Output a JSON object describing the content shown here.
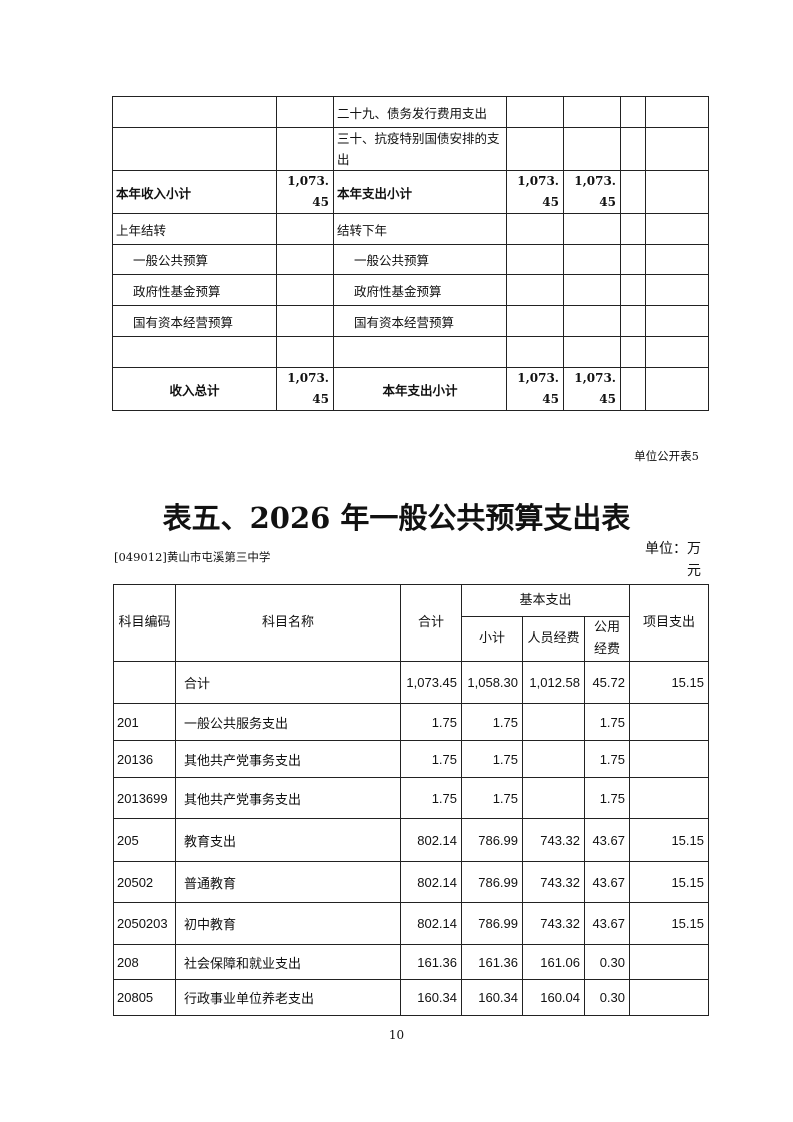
{
  "top_table": {
    "rows": [
      {
        "left_label": "",
        "left_value": "",
        "right_label": "二十九、债务发行费用支出",
        "v1": "",
        "v2": ""
      },
      {
        "left_label": "",
        "left_value": "",
        "right_label": "三十、抗疫特别国债安排的支出",
        "v1": "",
        "v2": ""
      },
      {
        "left_label": "本年收入小计",
        "left_value": "1,073.45",
        "right_label": "本年支出小计",
        "v1": "1,073.45",
        "v2": "1,073.45"
      },
      {
        "left_label": "上年结转",
        "left_value": "",
        "right_label": "结转下年",
        "v1": "",
        "v2": ""
      },
      {
        "left_label": "一般公共预算",
        "left_value": "",
        "right_label": "一般公共预算",
        "v1": "",
        "v2": ""
      },
      {
        "left_label": "政府性基金预算",
        "left_value": "",
        "right_label": "政府性基金预算",
        "v1": "",
        "v2": ""
      },
      {
        "left_label": "国有资本经营预算",
        "left_value": "",
        "right_label": "国有资本经营预算",
        "v1": "",
        "v2": ""
      },
      {
        "left_label": "",
        "left_value": "",
        "right_label": "",
        "v1": "",
        "v2": ""
      },
      {
        "left_label": "收入总计",
        "left_value": "1,073.45",
        "right_label": "本年支出小计",
        "v1": "1,073.45",
        "v2": "1,073.45"
      }
    ]
  },
  "table5": {
    "label": "单位公开表5",
    "title": "表五、2026 年一般公共预算支出表",
    "org": "[049012]黄山市屯溪第三中学",
    "unit": "单位：万元",
    "headers": {
      "code": "科目编码",
      "name": "科目名称",
      "total": "合计",
      "basic": "基本支出",
      "subtotal": "小计",
      "personnel": "人员经费",
      "public": "公用经费",
      "project": "项目支出"
    },
    "rows": [
      {
        "code": "",
        "name": "合计",
        "total": "1,073.45",
        "subtotal": "1,058.30",
        "personnel": "1,012.58",
        "public": "45.72",
        "project": "15.15"
      },
      {
        "code": "201",
        "name": "一般公共服务支出",
        "total": "1.75",
        "subtotal": "1.75",
        "personnel": "",
        "public": "1.75",
        "project": ""
      },
      {
        "code": "20136",
        "name": "其他共产党事务支出",
        "total": "1.75",
        "subtotal": "1.75",
        "personnel": "",
        "public": "1.75",
        "project": ""
      },
      {
        "code": "2013699",
        "name": "其他共产党事务支出",
        "total": "1.75",
        "subtotal": "1.75",
        "personnel": "",
        "public": "1.75",
        "project": ""
      },
      {
        "code": "205",
        "name": "教育支出",
        "total": "802.14",
        "subtotal": "786.99",
        "personnel": "743.32",
        "public": "43.67",
        "project": "15.15"
      },
      {
        "code": "20502",
        "name": "普通教育",
        "total": "802.14",
        "subtotal": "786.99",
        "personnel": "743.32",
        "public": "43.67",
        "project": "15.15"
      },
      {
        "code": "2050203",
        "name": "初中教育",
        "total": "802.14",
        "subtotal": "786.99",
        "personnel": "743.32",
        "public": "43.67",
        "project": "15.15"
      },
      {
        "code": "208",
        "name": "社会保障和就业支出",
        "total": "161.36",
        "subtotal": "161.36",
        "personnel": "161.06",
        "public": "0.30",
        "project": ""
      },
      {
        "code": "20805",
        "name": "行政事业单位养老支出",
        "total": "160.34",
        "subtotal": "160.34",
        "personnel": "160.04",
        "public": "0.30",
        "project": ""
      }
    ]
  },
  "page_number": "10"
}
